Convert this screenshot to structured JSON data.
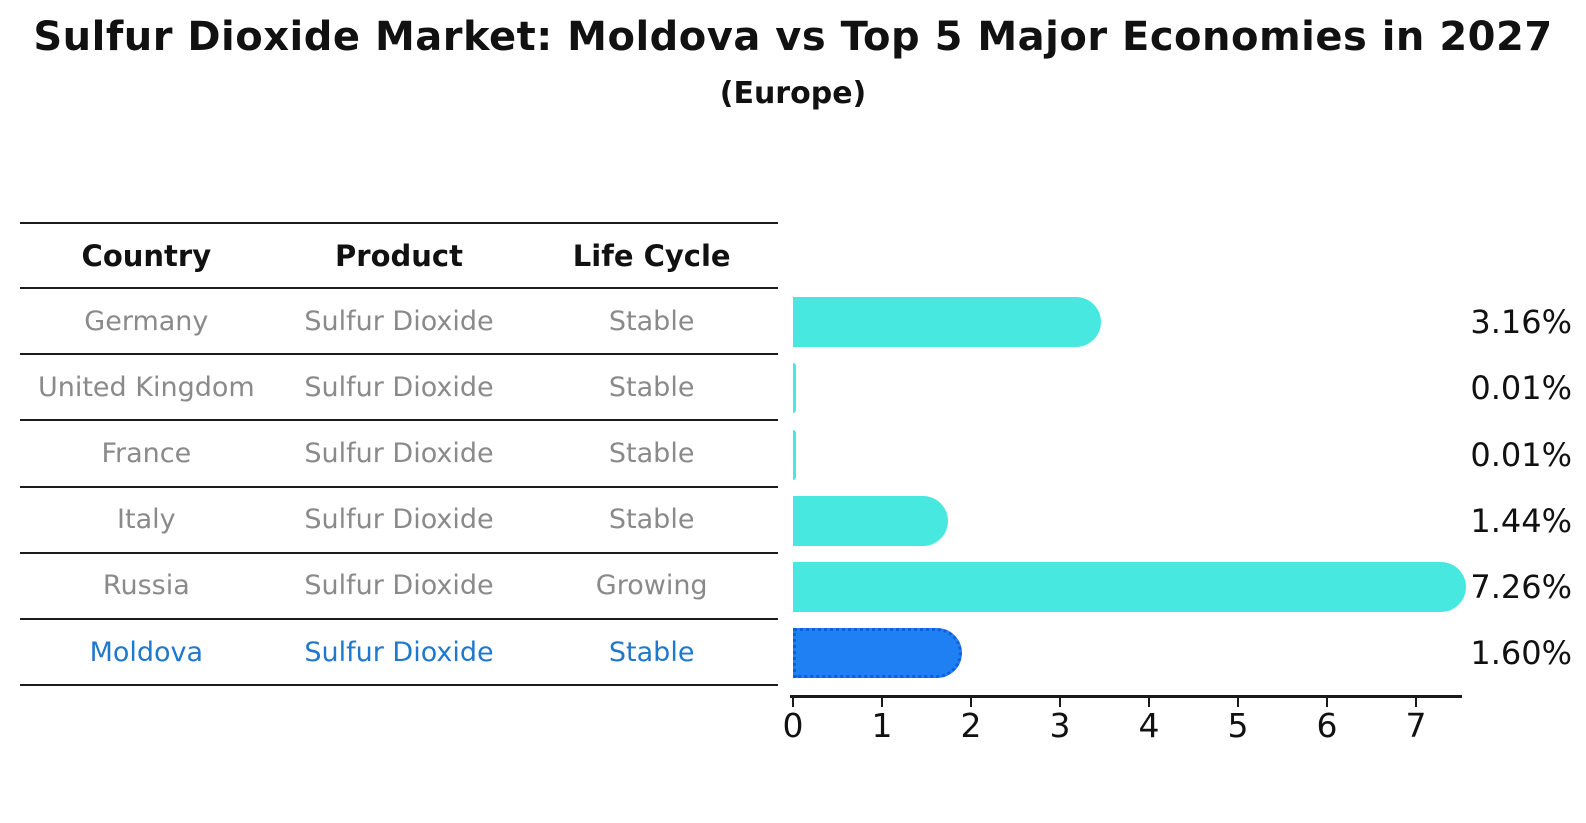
{
  "title": "Sulfur Dioxide Market: Moldova vs Top 5 Major Economies in 2027",
  "subtitle": "(Europe)",
  "table": {
    "headers": [
      "Country",
      "Product",
      "Life Cycle"
    ],
    "rows": [
      {
        "country": "Germany",
        "product": "Sulfur Dioxide",
        "life_cycle": "Stable",
        "highlight": false
      },
      {
        "country": "United Kingdom",
        "product": "Sulfur Dioxide",
        "life_cycle": "Stable",
        "highlight": false
      },
      {
        "country": "France",
        "product": "Sulfur Dioxide",
        "life_cycle": "Stable",
        "highlight": false
      },
      {
        "country": "Italy",
        "product": "Sulfur Dioxide",
        "life_cycle": "Stable",
        "highlight": false
      },
      {
        "country": "Russia",
        "product": "Sulfur Dioxide",
        "life_cycle": "Growing",
        "highlight": false
      },
      {
        "country": "Moldova",
        "product": "Sulfur Dioxide",
        "life_cycle": "Stable",
        "highlight": true
      }
    ]
  },
  "chart_data": {
    "type": "bar",
    "orientation": "horizontal",
    "title": "Sulfur Dioxide Market: Moldova vs Top 5 Major Economies in 2027",
    "subtitle": "(Europe)",
    "categories": [
      "Germany",
      "United Kingdom",
      "France",
      "Italy",
      "Russia",
      "Moldova"
    ],
    "values": [
      3.16,
      0.01,
      0.01,
      1.44,
      7.26,
      1.6
    ],
    "value_labels": [
      "3.16%",
      "0.01%",
      "0.01%",
      "1.44%",
      "7.26%",
      "1.60%"
    ],
    "unit": "percent",
    "x_ticks": [
      0,
      1,
      2,
      3,
      4,
      5,
      6,
      7
    ],
    "xlim": [
      0,
      7.5
    ],
    "grid": false,
    "legend": null,
    "highlight_index": 5,
    "bar_color": "#47E8E0",
    "highlight_color": "#1E80F2",
    "highlight_border_color": "#0F5FD7"
  },
  "colors": {
    "background": "#ffffff",
    "title_text": "#111111",
    "header_text": "#111111",
    "cell_text": "#8a8a8a",
    "highlight_text": "#1E78CE",
    "value_text": "#111111",
    "table_line": "#1c1c1c",
    "axis_line": "#1a1a1a"
  }
}
